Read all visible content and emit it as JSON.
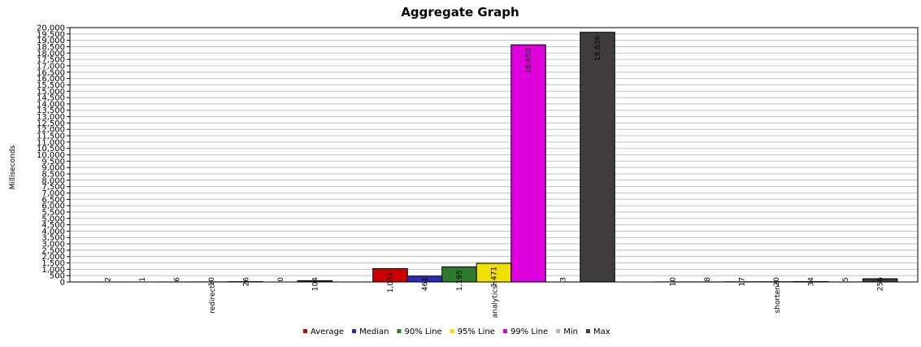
{
  "chart_data": {
    "type": "bar",
    "title": "Aggregate Graph",
    "xlabel": "",
    "ylabel": "Milliseconds",
    "ylim": [
      0,
      20000
    ],
    "ytick_step": 500,
    "grid": true,
    "legend_position": "bottom",
    "categories": [
      "redirect",
      "analytics",
      "shorten"
    ],
    "series": [
      {
        "name": "Average",
        "color": "#cc0000",
        "values": [
          2,
          1052,
          10
        ]
      },
      {
        "name": "Median",
        "color": "#2a2ab4",
        "values": [
          1,
          461,
          8
        ]
      },
      {
        "name": "90% Line",
        "color": "#2d7a2d",
        "values": [
          6,
          1195,
          17
        ]
      },
      {
        "name": "95% Line",
        "color": "#f0e000",
        "values": [
          10,
          1471,
          20
        ]
      },
      {
        "name": "99% Line",
        "color": "#dd00dd",
        "values": [
          26,
          18650,
          34
        ]
      },
      {
        "name": "Min",
        "color": "#b4b4b4",
        "values": [
          0,
          3,
          5
        ]
      },
      {
        "name": "Max",
        "color": "#403c3c",
        "values": [
          104,
          19636,
          256
        ]
      }
    ]
  }
}
